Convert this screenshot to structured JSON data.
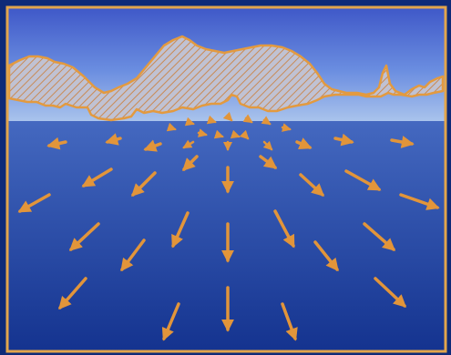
{
  "colors": {
    "frame_border": "#e2a54c",
    "sky_top": "#3f58c8",
    "sky_mid": "#6a8de0",
    "sky_horizon": "#a9c3ec",
    "ground_top": "#5c83d8",
    "ground_bottom": "#14338f",
    "mountain_stroke": "#e39a3f",
    "mountain_hatch": "#c98a55",
    "mountain_fill": "#c0c2d3",
    "arrow_color": "#e2953a"
  },
  "icons": {
    "flow_arrow": "arrow-icon",
    "ridge": "mountain-silhouette"
  }
}
